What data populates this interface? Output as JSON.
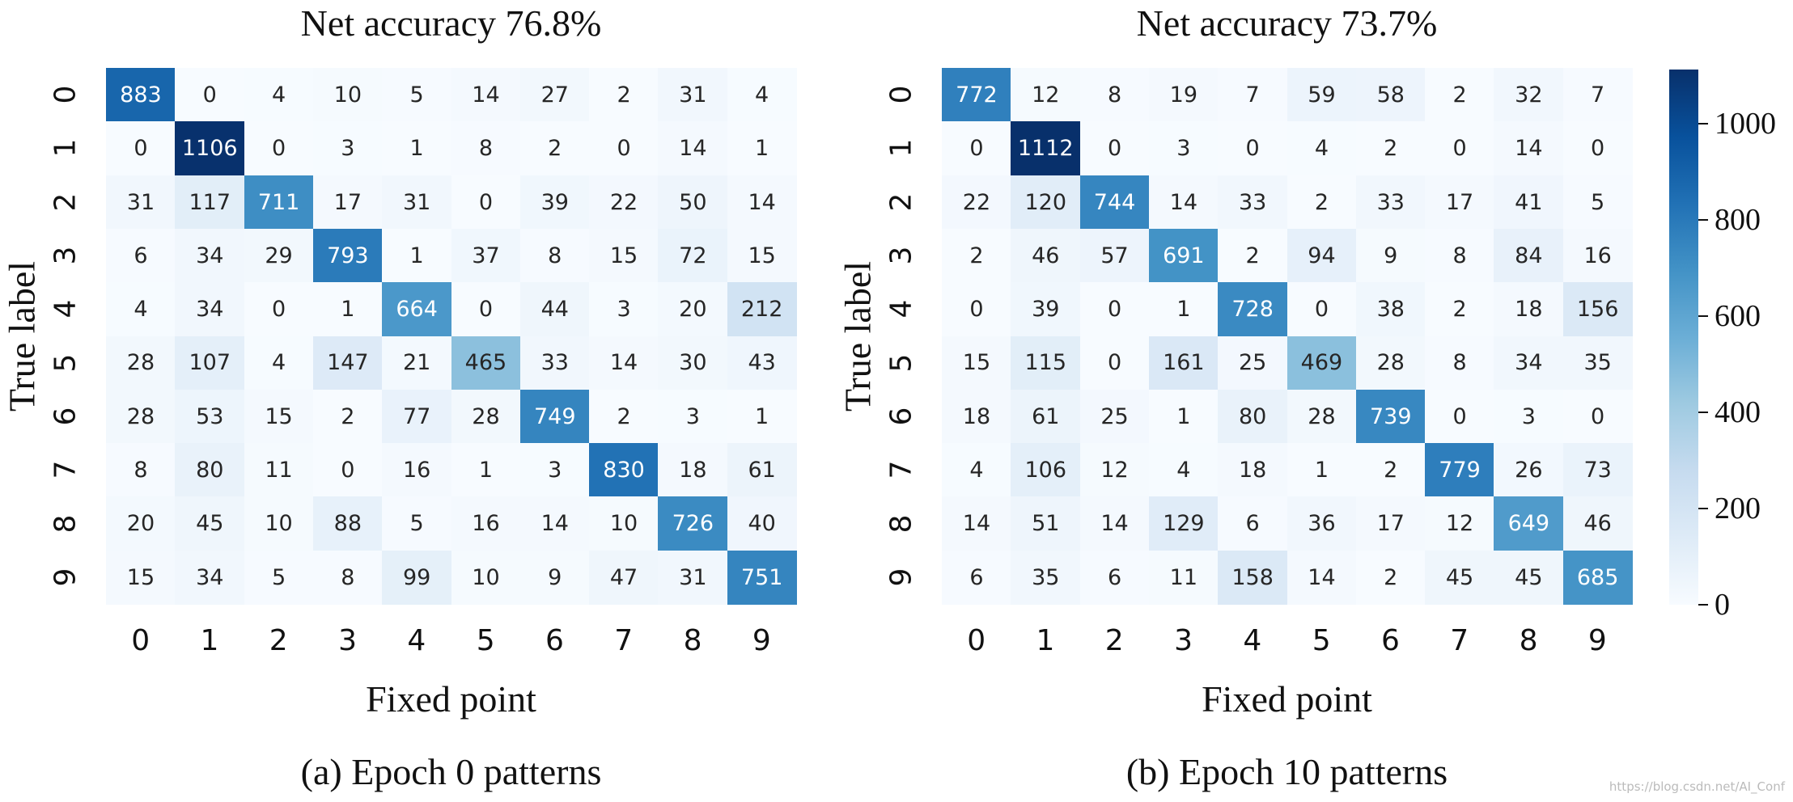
{
  "chart_data": [
    {
      "type": "heatmap",
      "title": "Net accuracy 76.8%",
      "xlabel": "Fixed point",
      "ylabel": "True label",
      "caption": "(a) Epoch 0 patterns",
      "x_categories": [
        "0",
        "1",
        "2",
        "3",
        "4",
        "5",
        "6",
        "7",
        "8",
        "9"
      ],
      "y_categories": [
        "0",
        "1",
        "2",
        "3",
        "4",
        "5",
        "6",
        "7",
        "8",
        "9"
      ],
      "values": [
        [
          883,
          0,
          4,
          10,
          5,
          14,
          27,
          2,
          31,
          4
        ],
        [
          0,
          1106,
          0,
          3,
          1,
          8,
          2,
          0,
          14,
          1
        ],
        [
          31,
          117,
          711,
          17,
          31,
          0,
          39,
          22,
          50,
          14
        ],
        [
          6,
          34,
          29,
          793,
          1,
          37,
          8,
          15,
          72,
          15
        ],
        [
          4,
          34,
          0,
          1,
          664,
          0,
          44,
          3,
          20,
          212
        ],
        [
          28,
          107,
          4,
          147,
          21,
          465,
          33,
          14,
          30,
          43
        ],
        [
          28,
          53,
          15,
          2,
          77,
          28,
          749,
          2,
          3,
          1
        ],
        [
          8,
          80,
          11,
          0,
          16,
          1,
          3,
          830,
          18,
          61
        ],
        [
          20,
          45,
          10,
          88,
          5,
          16,
          14,
          10,
          726,
          40
        ],
        [
          15,
          34,
          5,
          8,
          99,
          10,
          9,
          47,
          31,
          751
        ]
      ]
    },
    {
      "type": "heatmap",
      "title": "Net accuracy 73.7%",
      "xlabel": "Fixed point",
      "ylabel": "True label",
      "caption": "(b) Epoch 10 patterns",
      "x_categories": [
        "0",
        "1",
        "2",
        "3",
        "4",
        "5",
        "6",
        "7",
        "8",
        "9"
      ],
      "y_categories": [
        "0",
        "1",
        "2",
        "3",
        "4",
        "5",
        "6",
        "7",
        "8",
        "9"
      ],
      "values": [
        [
          772,
          12,
          8,
          19,
          7,
          59,
          58,
          2,
          32,
          7
        ],
        [
          0,
          1112,
          0,
          3,
          0,
          4,
          2,
          0,
          14,
          0
        ],
        [
          22,
          120,
          744,
          14,
          33,
          2,
          33,
          17,
          41,
          5
        ],
        [
          2,
          46,
          57,
          691,
          2,
          94,
          9,
          8,
          84,
          16
        ],
        [
          0,
          39,
          0,
          1,
          728,
          0,
          38,
          2,
          18,
          156
        ],
        [
          15,
          115,
          0,
          161,
          25,
          469,
          28,
          8,
          34,
          35
        ],
        [
          18,
          61,
          25,
          1,
          80,
          28,
          739,
          0,
          3,
          0
        ],
        [
          4,
          106,
          12,
          4,
          18,
          1,
          2,
          779,
          26,
          73
        ],
        [
          14,
          51,
          14,
          129,
          6,
          36,
          17,
          12,
          649,
          46
        ],
        [
          6,
          35,
          6,
          11,
          158,
          14,
          2,
          45,
          45,
          685
        ]
      ]
    }
  ],
  "colorbar": {
    "colormap": "Blues",
    "range": [
      0,
      1112
    ],
    "ticks": [
      0,
      200,
      400,
      600,
      800,
      1000
    ]
  },
  "watermark": "https://blog.csdn.net/AI_Conf"
}
